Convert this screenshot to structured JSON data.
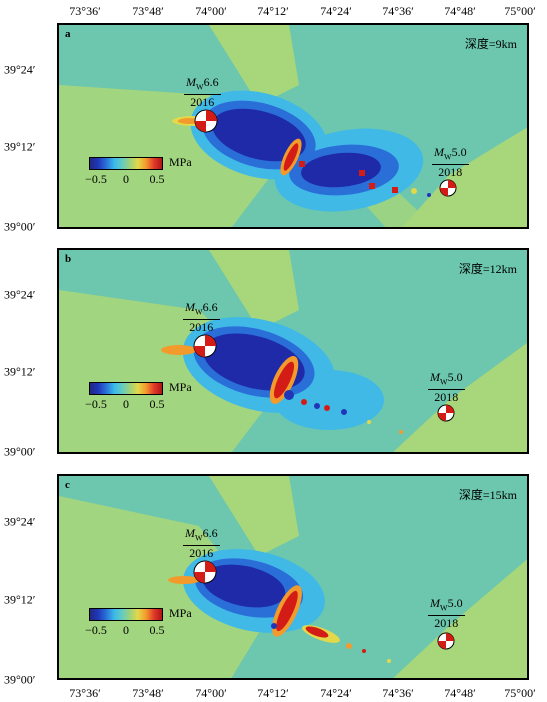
{
  "axes": {
    "lon_ticks": [
      "73°36′",
      "73°48′",
      "74°00′",
      "74°12′",
      "74°24′",
      "74°36′",
      "74°48′",
      "75°00′"
    ],
    "lat_ticks": [
      "39°24′",
      "39°12′",
      "39°00′"
    ]
  },
  "colorbar": {
    "unit": "MPa",
    "ticks": [
      "−0.5",
      "0",
      "0.5"
    ]
  },
  "events": {
    "main": {
      "m": "M",
      "sub": "W",
      "mag": "6.6",
      "year": "2016"
    },
    "after": {
      "m": "M",
      "sub": "W",
      "mag": "5.0",
      "year": "2018"
    }
  },
  "panels": [
    {
      "letter": "a",
      "depth": "深度=9km"
    },
    {
      "letter": "b",
      "depth": "深度=12km"
    },
    {
      "letter": "c",
      "depth": "深度=15km"
    }
  ],
  "colors": {
    "background": "#6cc7ae",
    "positive_zone": "#a8d67a",
    "negative_light": "#40b9e6",
    "negative_dark": "#1f2aa8",
    "positive_strong": "#d41c16"
  }
}
